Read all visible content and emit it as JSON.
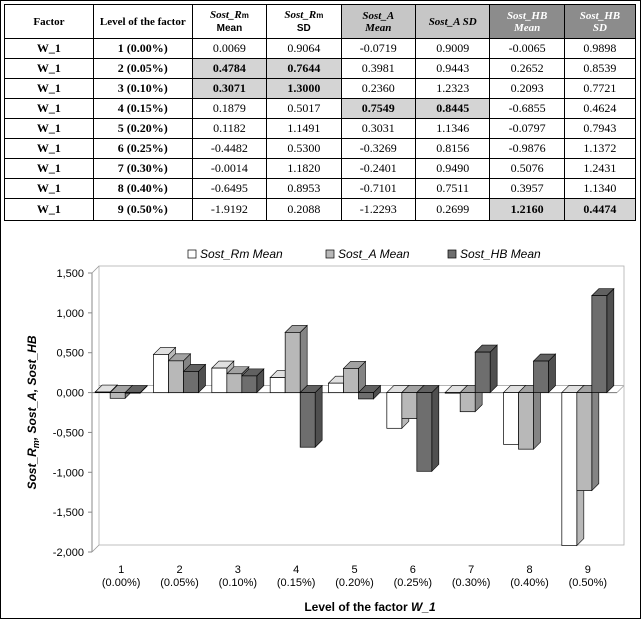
{
  "table": {
    "headers": [
      {
        "main": "Factor",
        "sub": ""
      },
      {
        "main": "Level of the factor",
        "sub": ""
      },
      {
        "main": "Sost_R",
        "sub": "m",
        "second": "Mean"
      },
      {
        "main": "Sost_R",
        "sub": "m",
        "second": "SD"
      },
      {
        "main": "Sost_A",
        "sub": "",
        "second": "Mean"
      },
      {
        "main": "Sost_A SD",
        "sub": ""
      },
      {
        "main": "Sost_HB",
        "sub": "",
        "second": "Mean"
      },
      {
        "main": "Sost_HB",
        "sub": "",
        "second": "SD"
      }
    ],
    "rows": [
      [
        "W_1",
        "1 (0.00%)",
        "0.0069",
        "0.9064",
        "-0.0719",
        "0.9009",
        "-0.0065",
        "0.9898"
      ],
      [
        "W_1",
        "2 (0.05%)",
        "0.4784",
        "0.7644",
        "0.3981",
        "0.9443",
        "0.2652",
        "0.8539"
      ],
      [
        "W_1",
        "3 (0.10%)",
        "0.3071",
        "1.3000",
        "0.2360",
        "1.2323",
        "0.2093",
        "0.7721"
      ],
      [
        "W_1",
        "4 (0.15%)",
        "0.1879",
        "0.5017",
        "0.7549",
        "0.8445",
        "-0.6855",
        "0.4624"
      ],
      [
        "W_1",
        "5 (0.20%)",
        "0.1182",
        "1.1491",
        "0.3031",
        "1.1346",
        "-0.0797",
        "0.7943"
      ],
      [
        "W_1",
        "6 (0.25%)",
        "-0.4482",
        "0.5300",
        "-0.3269",
        "0.8156",
        "-0.9876",
        "1.1372"
      ],
      [
        "W_1",
        "7 (0.30%)",
        "-0.0014",
        "1.1820",
        "-0.2401",
        "0.9490",
        "0.5076",
        "1.2431"
      ],
      [
        "W_1",
        "8 (0.40%)",
        "-0.6495",
        "0.8953",
        "-0.7101",
        "0.7511",
        "0.3957",
        "1.1340"
      ],
      [
        "W_1",
        "9 (0.50%)",
        "-1.9192",
        "0.2088",
        "-1.2293",
        "0.2699",
        "1.2160",
        "0.4474"
      ]
    ]
  },
  "chart_data": {
    "type": "bar",
    "categories": [
      "1\n(0.00%)",
      "2\n(0.05%)",
      "3\n(0.10%)",
      "4\n(0.15%)",
      "5\n(0.20%)",
      "6\n(0.25%)",
      "7\n(0.30%)",
      "8\n(0.40%)",
      "9\n(0.50%)"
    ],
    "series": [
      {
        "name": "Sost_Rm Mean",
        "color": "#ffffff",
        "values": [
          0.0069,
          0.4784,
          0.3071,
          0.1879,
          0.1182,
          -0.4482,
          -0.0014,
          -0.6495,
          -1.9192
        ]
      },
      {
        "name": "Sost_A Mean",
        "color": "#b8b8b8",
        "values": [
          -0.0719,
          0.3981,
          0.236,
          0.7549,
          0.3031,
          -0.3269,
          -0.2401,
          -0.7101,
          -1.2293
        ]
      },
      {
        "name": "Sost_HB Mean",
        "color": "#6e6e6e",
        "values": [
          -0.0065,
          0.2652,
          0.2093,
          -0.6855,
          -0.0797,
          -0.9876,
          0.5076,
          0.3957,
          1.216
        ]
      }
    ],
    "yticks": [
      "1,500",
      "1,000",
      "0,500",
      "0,000",
      "-0,500",
      "-1,000",
      "-1,500",
      "-2,000"
    ],
    "ylim": [
      -2.0,
      1.5
    ],
    "xlabel": "Level of the factor W_1",
    "ylabel": "Sost_Rm, Sost_A, Sost_HB",
    "legend": "top",
    "grid": false
  },
  "chart_text": {
    "xlabel_prefix": "Level of the factor ",
    "xlabel_var": "W_1",
    "ylabel_a": "Sost_R",
    "ylabel_a_sub": "m",
    "ylabel_rest": ", Sost_A, Sost_HB"
  }
}
